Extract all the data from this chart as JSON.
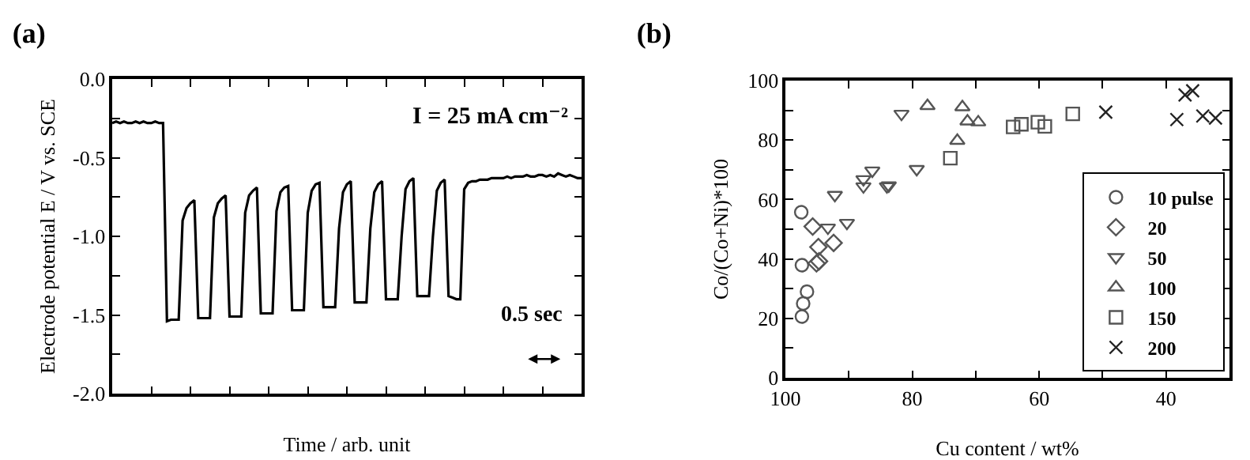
{
  "chart_data": [
    {
      "type": "line",
      "title": "(a)",
      "xlabel": "Time / arb. unit",
      "ylabel": "Electrode potential E / V vs. SCE",
      "annotations": [
        "I = 25 mA cm⁻²",
        "0.5 sec"
      ],
      "categories": [
        null,
        null,
        null,
        null,
        null,
        null,
        null,
        null,
        null,
        null,
        null,
        null,
        null,
        null,
        null,
        null,
        null,
        null,
        null,
        null,
        null,
        null,
        null,
        null,
        null,
        null,
        null,
        null,
        null,
        null,
        null,
        null,
        null,
        null,
        null,
        null,
        null,
        null,
        null,
        null,
        null,
        null,
        null,
        null,
        null,
        null,
        null,
        null,
        null,
        null,
        null,
        null,
        null,
        null,
        null,
        null,
        null,
        null,
        null,
        null,
        null,
        null,
        null,
        null,
        null,
        null,
        null,
        null,
        null,
        null,
        null,
        null,
        null,
        null,
        null,
        null,
        null,
        null,
        null,
        null,
        null,
        null,
        null,
        null,
        null,
        null,
        null,
        null,
        null,
        null,
        null,
        null,
        null,
        null,
        null,
        null,
        null,
        null,
        null,
        null,
        null,
        null,
        null,
        null,
        null,
        null,
        null,
        null,
        null,
        null,
        null,
        null,
        null,
        null,
        null,
        null,
        null,
        null,
        null,
        null,
        null
      ],
      "ylim": [
        -2,
        0
      ],
      "yticks": [
        {
          "value": 0,
          "label": "0.0"
        },
        {
          "value": -0.25,
          "label": null
        },
        -0.5,
        {
          "value": -0.75,
          "label": null
        },
        {
          "value": -1,
          "label": "-1.0"
        },
        {
          "value": -1.25,
          "label": null
        },
        -1.5,
        {
          "value": -1.75,
          "label": null
        },
        {
          "value": -2,
          "label": "-2.0"
        }
      ],
      "tick_labels": "y",
      "grid": false,
      "legend": false,
      "marker": "none",
      "line_style": "solid",
      "series": [
        {
          "color": "#000000",
          "values": [
            -0.28,
            -0.27,
            -0.28,
            -0.27,
            -0.28,
            -0.28,
            -0.27,
            -0.28,
            -0.27,
            -0.28,
            -0.28,
            -0.27,
            -0.28,
            -0.28,
            -1.54,
            -1.53,
            -1.53,
            -1.53,
            -0.9,
            -0.82,
            -0.79,
            -0.77,
            -1.52,
            -1.52,
            -1.52,
            -1.52,
            -0.88,
            -0.79,
            -0.76,
            -0.74,
            -1.51,
            -1.51,
            -1.51,
            -1.51,
            -0.85,
            -0.74,
            -0.71,
            -0.69,
            -1.49,
            -1.49,
            -1.49,
            -1.49,
            -0.84,
            -0.72,
            -0.69,
            -0.68,
            -1.47,
            -1.47,
            -1.47,
            -1.47,
            -0.85,
            -0.71,
            -0.67,
            -0.66,
            -1.45,
            -1.45,
            -1.45,
            -1.45,
            -0.95,
            -0.72,
            -0.67,
            -0.65,
            -1.42,
            -1.42,
            -1.42,
            -1.42,
            -0.95,
            -0.72,
            -0.67,
            -0.65,
            -1.4,
            -1.4,
            -1.4,
            -1.4,
            -1.0,
            -0.7,
            -0.65,
            -0.63,
            -1.38,
            -1.38,
            -1.38,
            -1.38,
            -1.0,
            -0.71,
            -0.66,
            -0.64,
            -1.38,
            -1.39,
            -1.4,
            -1.4,
            -0.7,
            -0.66,
            -0.65,
            -0.65,
            -0.64,
            -0.64,
            -0.64,
            -0.63,
            -0.63,
            -0.63,
            -0.63,
            -0.62,
            -0.63,
            -0.62,
            -0.62,
            -0.62,
            -0.61,
            -0.62,
            -0.62,
            -0.61,
            -0.61,
            -0.62,
            -0.61,
            -0.62,
            -0.6,
            -0.61,
            -0.62,
            -0.61,
            -0.62,
            -0.63,
            -0.63
          ]
        }
      ]
    },
    {
      "type": "scatter",
      "title": "(b)",
      "xlabel": "Cu content / wt%",
      "ylabel": "Co/(Co+Ni)*100",
      "xlim": [
        100,
        30
      ],
      "xticks": [
        100,
        {
          "value": 90,
          "label": null
        },
        80,
        {
          "value": 70,
          "label": null
        },
        60,
        {
          "value": 50,
          "label": null
        },
        40
      ],
      "ylim": [
        0,
        100
      ],
      "yticks": [
        0,
        {
          "value": 10,
          "label": null
        },
        20,
        {
          "value": 30,
          "label": null
        },
        40,
        {
          "value": 50,
          "label": null
        },
        60,
        {
          "value": 70,
          "label": null
        },
        80,
        {
          "value": 90,
          "label": null
        },
        100
      ],
      "grid": false,
      "legend": "bottom right",
      "series": [
        {
          "name": "10 pulse",
          "color": "#555555",
          "marker": "circle",
          "x": [
            97.5,
            97.4,
            96.6,
            97.2,
            97.4
          ],
          "values": [
            55.7,
            37.9,
            29,
            25,
            20.6
          ]
        },
        {
          "name": "20",
          "color": "#555555",
          "marker": "diamond",
          "x": [
            95.7,
            94.8,
            95.1,
            94.7,
            92.4
          ],
          "values": [
            50.9,
            44,
            38.5,
            39.2,
            45.4
          ]
        },
        {
          "name": "50",
          "color": "#555555",
          "marker": "triangle-down",
          "x": [
            93.3,
            92.2,
            90.3,
            87.7,
            87.7,
            86.3,
            84,
            83.7,
            81.7,
            79.3
          ],
          "values": [
            50.5,
            61.5,
            52.1,
            66.8,
            64.4,
            69.7,
            64.4,
            64.7,
            88.8,
            70.2
          ]
        },
        {
          "name": "100",
          "color": "#555555",
          "marker": "triangle",
          "x": [
            77.6,
            72.1,
            72.9,
            71.3,
            69.6
          ],
          "values": [
            91.5,
            91.1,
            79.8,
            86.3,
            86
          ]
        },
        {
          "name": "150",
          "color": "#555555",
          "marker": "square",
          "x": [
            74,
            64.1,
            62.8,
            60.2,
            59.1,
            54.7
          ],
          "values": [
            73.9,
            84.4,
            85.3,
            86,
            84.6,
            88.8
          ]
        },
        {
          "name": "200",
          "color": "#222222",
          "marker": "cross",
          "x": [
            49.5,
            38.3,
            37,
            35.8,
            34.2,
            32.2
          ],
          "values": [
            89.4,
            86.9,
            95.2,
            96.6,
            88.1,
            87.4
          ]
        }
      ]
    }
  ]
}
